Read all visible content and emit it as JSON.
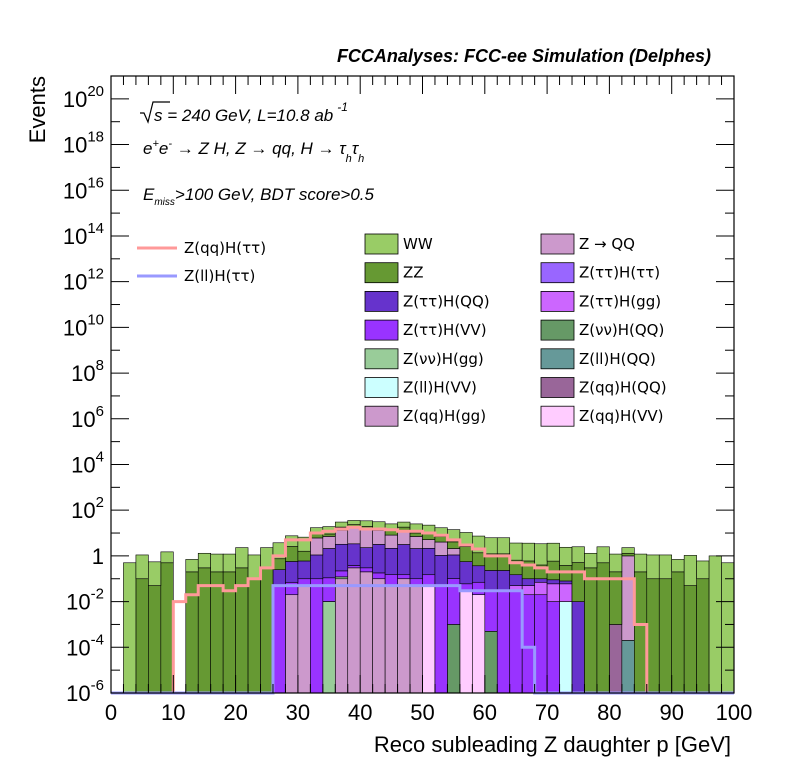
{
  "chart_data": {
    "type": "bar",
    "subtype": "stacked-histogram-log",
    "title": "FCCAnalyses: FCC-ee Simulation (Delphes)",
    "xlabel": "Reco subleading Z daughter p [GeV]",
    "ylabel": "Events",
    "xlim": [
      0,
      100
    ],
    "ylim": [
      1e-06,
      1e+21
    ],
    "yscale": "log",
    "x_ticks": [
      0,
      10,
      20,
      30,
      40,
      50,
      60,
      70,
      80,
      90,
      100
    ],
    "x_tick_labels": [
      "0",
      "10",
      "20",
      "30",
      "40",
      "50",
      "60",
      "70",
      "80",
      "90",
      "100"
    ],
    "y_ticks": [
      {
        "value": 1e-06,
        "base": "10",
        "exp": "-6"
      },
      {
        "value": 0.0001,
        "base": "10",
        "exp": "-4"
      },
      {
        "value": 0.01,
        "base": "10",
        "exp": "-2"
      },
      {
        "value": 1,
        "base": "1",
        "exp": ""
      },
      {
        "value": 100.0,
        "base": "10",
        "exp": "2"
      },
      {
        "value": 10000.0,
        "base": "10",
        "exp": "4"
      },
      {
        "value": 1000000.0,
        "base": "10",
        "exp": "6"
      },
      {
        "value": 100000000.0,
        "base": "10",
        "exp": "8"
      },
      {
        "value": 10000000000.0,
        "base": "10",
        "exp": "10"
      },
      {
        "value": 1000000000000.0,
        "base": "10",
        "exp": "12"
      },
      {
        "value": 100000000000000.0,
        "base": "10",
        "exp": "14"
      },
      {
        "value": 1e+16,
        "base": "10",
        "exp": "16"
      },
      {
        "value": 1e+18,
        "base": "10",
        "exp": "18"
      },
      {
        "value": 1e+20,
        "base": "10",
        "exp": "20"
      }
    ],
    "annotations": {
      "line1": {
        "pre": "√",
        "s": "s",
        "rest": " = 240 GeV, L=10.8 ab",
        "sup": "-1"
      },
      "line2": {
        "e1": "e",
        "sup1": "+",
        "e2": "e",
        "sup2": "-",
        "rest": " → Z H, Z  → qq, H  → τ",
        "sub1": "h",
        "tau2": "τ",
        "sub2": "h"
      },
      "line3": {
        "e": "E",
        "sub": "miss",
        "rest": ">100 GeV, BDT score>0.5"
      }
    },
    "bin_edges_start": 0,
    "bin_width": 2,
    "stack": [
      {
        "name": "Z(qq)H(VV)",
        "color": "#ffccff",
        "values": [
          0,
          0,
          0,
          0,
          0,
          0,
          0,
          0,
          0,
          0,
          0,
          0,
          0,
          0,
          0,
          0,
          0,
          0,
          0,
          0,
          0,
          0,
          0,
          0,
          0,
          0.05,
          0,
          0,
          0.03,
          0.02,
          0,
          0,
          0,
          0,
          0,
          0,
          0,
          0,
          0,
          0,
          0,
          0,
          0,
          0,
          0,
          0,
          0,
          0,
          0,
          0
        ]
      },
      {
        "name": "Z(qq)H(gg)",
        "color": "#cc99cc",
        "values": [
          0,
          0,
          0,
          0,
          0,
          0,
          0,
          0,
          0,
          0,
          0,
          0,
          0,
          0,
          0.02,
          0.05,
          0,
          0,
          0.1,
          0.3,
          0.2,
          0.1,
          0.05,
          0.1,
          0.05,
          0,
          0,
          0,
          0,
          0,
          0,
          0,
          0,
          0,
          0,
          0,
          0,
          0,
          0,
          0,
          0,
          0,
          0,
          0,
          0,
          0,
          0,
          0,
          0,
          0
        ]
      },
      {
        "name": "Z(qq)H(QQ)",
        "color": "#996699",
        "values": [
          0,
          0,
          0,
          0,
          0,
          0,
          0,
          0,
          0,
          0,
          0,
          0,
          0,
          0,
          0,
          0,
          0,
          0,
          0,
          0,
          0,
          0,
          0,
          0,
          0,
          0,
          0,
          0,
          0,
          0,
          0,
          0,
          0,
          0,
          0,
          0,
          0,
          0,
          0,
          0,
          0.001,
          0,
          0,
          0,
          0,
          0,
          0,
          0,
          0,
          0
        ]
      },
      {
        "name": "Z(ll)H(VV)",
        "color": "#ccffff",
        "values": [
          0,
          0,
          0,
          0,
          0,
          0,
          0,
          0,
          0,
          0,
          0,
          0,
          0,
          0,
          0,
          0,
          0,
          0,
          0,
          0,
          0,
          0,
          0,
          0,
          0,
          0,
          0,
          0,
          0,
          0,
          0,
          0,
          0,
          0,
          0,
          0,
          0.01,
          0,
          0,
          0,
          0,
          0,
          0,
          0,
          0,
          0,
          0,
          0,
          0,
          0
        ]
      },
      {
        "name": "Z(ll)H(QQ)",
        "color": "#669999",
        "values": [
          0,
          0,
          0,
          0,
          0,
          0,
          0,
          0,
          0,
          0,
          0,
          0,
          0,
          0,
          0,
          0,
          0,
          0,
          0,
          0,
          0,
          0,
          0,
          0,
          0,
          0,
          0,
          0,
          0,
          0,
          0,
          0,
          0,
          0,
          0,
          0,
          0,
          0,
          0,
          0,
          0,
          0.0002,
          0,
          0,
          0,
          0,
          0,
          0,
          0,
          0
        ]
      },
      {
        "name": "Z(νν)H(gg)",
        "color": "#99cc99",
        "values": [
          0,
          0,
          0,
          0,
          0,
          0,
          0,
          0,
          0,
          0,
          0,
          0,
          0,
          0,
          0,
          0,
          0,
          0.01,
          0.02,
          0,
          0,
          0,
          0,
          0,
          0,
          0,
          0,
          0,
          0,
          0,
          0,
          0,
          0,
          0,
          0,
          0,
          0,
          0,
          0,
          0,
          0,
          0,
          0,
          0,
          0,
          0,
          0,
          0,
          0,
          0
        ]
      },
      {
        "name": "Z(νν)H(QQ)",
        "color": "#669966",
        "values": [
          0,
          0,
          0,
          0,
          0,
          0,
          0,
          0,
          0,
          0,
          0,
          0,
          0,
          0,
          0,
          0,
          0,
          0.0001,
          0.001,
          0.0002,
          0.001,
          0.0001,
          0.0005,
          0.0001,
          0.0002,
          0,
          0,
          0.001,
          0.0001,
          0.0001,
          0.0005,
          0,
          0,
          0,
          0,
          0,
          0,
          0,
          0,
          0,
          0,
          0,
          0,
          0,
          0,
          0,
          0,
          0,
          0,
          0
        ]
      },
      {
        "name": "Z(ττ)H(VV)",
        "color": "#9933ff",
        "values": [
          0,
          0,
          0,
          0,
          0,
          0,
          0,
          0,
          0,
          0,
          0,
          0,
          0,
          0.05,
          0.05,
          0.05,
          0.1,
          0.1,
          0.1,
          0.08,
          0.1,
          0.08,
          0.1,
          0.05,
          0.05,
          0.1,
          0.05,
          0.1,
          0.03,
          0.05,
          0.03,
          0.03,
          0.03,
          0.02,
          0.02,
          0.01,
          0,
          0,
          0,
          0,
          0,
          0,
          0,
          0,
          0,
          0,
          0,
          0,
          0,
          0
        ]
      },
      {
        "name": "Z(ττ)H(gg)",
        "color": "#cc66ff",
        "values": [
          0,
          0,
          0,
          0,
          0,
          0,
          0,
          0,
          0,
          0,
          0,
          0,
          0,
          0,
          0,
          0,
          0,
          0,
          0,
          0,
          0,
          0,
          0,
          0,
          0,
          0,
          0,
          0,
          0,
          0,
          0,
          0,
          0.02,
          0.03,
          0.05,
          0.05,
          0.05,
          0,
          0,
          0,
          0,
          0,
          0,
          0,
          0,
          0,
          0,
          0,
          0,
          0
        ]
      },
      {
        "name": "Z(ττ)H(ττ)",
        "color": "#9966ff",
        "values": [
          0,
          0,
          0,
          0,
          0,
          0,
          0,
          0,
          0,
          0,
          0,
          0,
          0,
          0,
          0,
          0,
          0,
          0,
          0,
          0,
          0,
          0,
          0,
          0,
          0,
          0,
          0,
          0,
          0,
          0,
          0,
          0,
          0,
          0,
          0,
          0,
          0,
          0,
          0,
          0,
          0,
          0,
          0,
          0,
          0,
          0,
          0,
          0,
          0,
          0
        ]
      },
      {
        "name": "Z(ττ)H(QQ)",
        "color": "#6633cc",
        "values": [
          0,
          0,
          0,
          0,
          0,
          0,
          0,
          0,
          0,
          0,
          0,
          0,
          0,
          0.2,
          0.5,
          0.5,
          1,
          2,
          3,
          3,
          2,
          3,
          2,
          3,
          2,
          2,
          1,
          1,
          0.5,
          0.3,
          0.2,
          0.2,
          0.1,
          0.05,
          0.03,
          0.03,
          0.02,
          0.01,
          0,
          0,
          0,
          0,
          0,
          0,
          0,
          0,
          0,
          0,
          0,
          0
        ]
      },
      {
        "name": "Z → QQ",
        "color": "#cc99cc",
        "values": [
          0,
          0,
          0,
          0,
          0,
          0,
          0,
          0,
          0,
          0,
          0,
          0,
          0,
          0,
          0,
          0,
          5,
          5,
          10,
          15,
          12,
          10,
          6,
          10,
          5,
          3,
          3,
          1,
          0,
          0,
          0,
          0,
          0,
          0,
          0,
          0,
          0,
          0,
          0,
          0,
          0,
          1,
          0,
          0,
          0,
          0,
          0,
          0,
          0,
          0
        ]
      },
      {
        "name": "ZZ",
        "color": "#669933",
        "values": [
          0,
          0,
          0.1,
          0.05,
          0.5,
          0,
          0.2,
          0.3,
          0.2,
          0.2,
          0.3,
          0.1,
          0.3,
          0.5,
          2,
          1,
          3,
          2,
          5,
          5,
          5,
          3,
          5,
          5,
          3,
          5,
          3,
          2,
          2,
          1,
          1,
          1,
          0.5,
          0.5,
          0.3,
          0.5,
          0.3,
          0.5,
          0.3,
          0.5,
          0.2,
          0.3,
          0.2,
          0.1,
          0.1,
          0.2,
          0.05,
          0.1,
          0,
          0
        ]
      },
      {
        "name": "WW",
        "color": "#99cc66",
        "values": [
          0,
          0.5,
          1,
          0.5,
          1,
          0,
          0.5,
          1,
          1,
          1,
          2,
          1,
          2,
          3,
          5,
          5,
          8,
          10,
          12,
          12,
          15,
          15,
          12,
          12,
          15,
          12,
          10,
          10,
          8,
          6,
          5,
          5,
          3,
          3,
          3,
          3,
          2,
          2,
          1,
          2,
          1,
          1,
          1,
          1,
          1,
          0.5,
          1,
          0.5,
          1,
          0.5
        ]
      }
    ],
    "overlays": [
      {
        "name": "Z(qq)H(ττ)",
        "color": "#ff9999",
        "values": [
          0,
          0,
          0,
          0,
          0,
          0.01,
          0.02,
          0.05,
          0.05,
          0.03,
          0.05,
          0.1,
          0.3,
          1,
          5,
          5,
          10,
          12,
          15,
          18,
          15,
          15,
          14,
          12,
          12,
          10,
          8,
          5,
          3,
          2,
          1,
          1,
          0.5,
          0.4,
          0.3,
          0.2,
          0.2,
          0.2,
          0.1,
          0.1,
          0.1,
          0.1,
          0.001,
          0,
          0,
          0,
          0,
          0,
          0,
          0
        ]
      },
      {
        "name": "Z(ll)H(ττ)",
        "color": "#9999ff",
        "values": [
          0,
          0,
          0,
          0,
          0,
          0,
          0,
          0,
          0,
          0,
          0,
          0,
          0,
          0.05,
          0.05,
          0.05,
          0.05,
          0.05,
          0.05,
          0.05,
          0.05,
          0.05,
          0.05,
          0.05,
          0.05,
          0.05,
          0.05,
          0.05,
          0.03,
          0.03,
          0.03,
          0.03,
          0.03,
          0.0001,
          0,
          0,
          0,
          0,
          0,
          0,
          0,
          0,
          0,
          0,
          0,
          0,
          0,
          0,
          0,
          0
        ]
      }
    ],
    "legend": {
      "placement": "top",
      "lines": [
        "Z(qq)H(ττ)",
        "Z(ll)H(ττ)"
      ],
      "fills_col1": [
        "WW",
        "ZZ",
        "Z(ττ)H(QQ)",
        "Z(ττ)H(VV)",
        "Z(νν)H(gg)",
        "Z(ll)H(VV)",
        "Z(qq)H(gg)"
      ],
      "fills_col2": [
        "Z → QQ",
        "Z(ττ)H(ττ)",
        "Z(ττ)H(gg)",
        "Z(νν)H(QQ)",
        "Z(ll)H(QQ)",
        "Z(qq)H(QQ)",
        "Z(qq)H(VV)"
      ]
    }
  }
}
